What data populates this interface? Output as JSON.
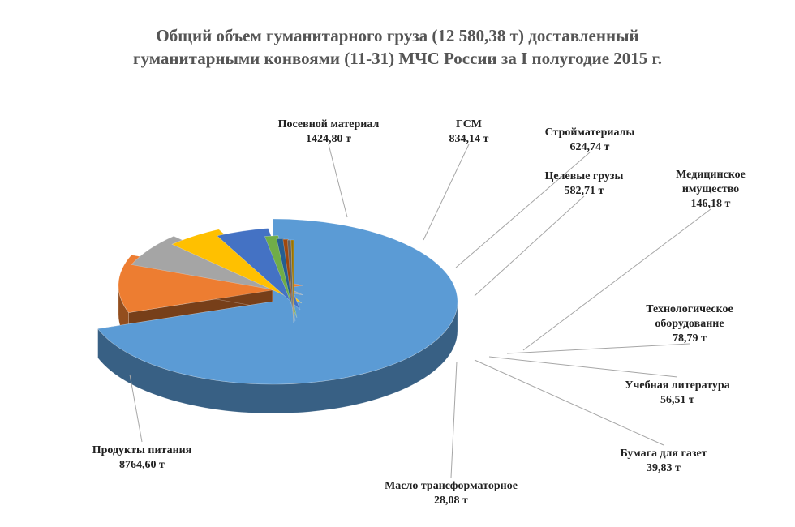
{
  "chart_data": {
    "type": "pie",
    "title_lines": [
      "Общий объем гуманитарного груза (12 580,38 т) доставленный",
      "гуманитарными конвоями (11-31) МЧС России за I полугодие 2015 г."
    ],
    "unit": "т",
    "slices": [
      {
        "name": "Продукты питания",
        "value": 8764.6,
        "value_label": "8764,60 т",
        "color": "#5b9bd5",
        "label_lines": [
          "Продукты питания"
        ]
      },
      {
        "name": "Посевной материал",
        "value": 1424.8,
        "value_label": "1424,80 т",
        "color": "#ed7d31",
        "label_lines": [
          "Посевной материал"
        ]
      },
      {
        "name": "ГСМ",
        "value": 834.14,
        "value_label": "834,14 т",
        "color": "#a5a5a5",
        "label_lines": [
          "ГСМ"
        ]
      },
      {
        "name": "Стройматериалы",
        "value": 624.74,
        "value_label": "624,74 т",
        "color": "#ffc000",
        "label_lines": [
          "Стройматериалы"
        ]
      },
      {
        "name": "Целевые грузы",
        "value": 582.71,
        "value_label": "582,71 т",
        "color": "#4472c4",
        "label_lines": [
          "Целевые грузы"
        ]
      },
      {
        "name": "Медицинское имущество",
        "value": 146.18,
        "value_label": "146,18 т",
        "color": "#70ad47",
        "label_lines": [
          "Медицинское",
          "имущество"
        ]
      },
      {
        "name": "Технологическое оборудование",
        "value": 78.79,
        "value_label": "78,79 т",
        "color": "#255e91",
        "label_lines": [
          "Технологическое",
          "оборудование"
        ]
      },
      {
        "name": "Учебная литература",
        "value": 56.51,
        "value_label": "56,51 т",
        "color": "#9e480e",
        "label_lines": [
          "Учебная литература"
        ]
      },
      {
        "name": "Бумага для газет",
        "value": 39.83,
        "value_label": "39,83 т",
        "color": "#636363",
        "label_lines": [
          "Бумага для газет"
        ]
      },
      {
        "name": "Масло трансформаторное",
        "value": 28.08,
        "value_label": "28,08 т",
        "color": "#997300",
        "label_lines": [
          "Масло трансформаторное"
        ]
      }
    ],
    "legend": "none",
    "style": "3d-exploded-pie"
  }
}
